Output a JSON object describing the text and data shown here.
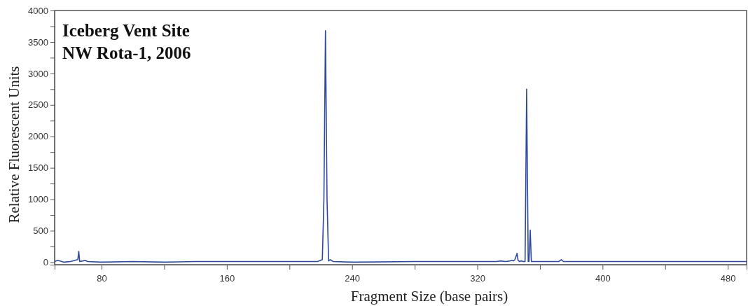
{
  "chart_data": {
    "type": "line",
    "title": "Iceberg Vent Site",
    "subtitle": "NW Rota-1, 2006",
    "xlabel": "Fragment Size (base pairs)",
    "ylabel": "Relative Fluorescent Units",
    "xlim": [
      50,
      492
    ],
    "xticks": [
      80,
      {
        "value": 120,
        "label": null
      },
      160,
      {
        "value": 200,
        "label": null
      },
      240,
      {
        "value": 280,
        "label": null
      },
      320,
      {
        "value": 360,
        "label": null
      },
      400,
      {
        "value": 440,
        "label": null
      },
      480
    ],
    "ylim": [
      -40,
      4000
    ],
    "yticks": [
      0,
      {
        "value": 250,
        "label": null
      },
      500,
      {
        "value": 750,
        "label": null
      },
      1000,
      {
        "value": 1250,
        "label": null
      },
      1500,
      {
        "value": 1750,
        "label": null
      },
      2000,
      {
        "value": 2250,
        "label": null
      },
      2500,
      {
        "value": 2750,
        "label": null
      },
      3000,
      {
        "value": 3250,
        "label": null
      },
      3500,
      {
        "value": 3750,
        "label": null
      },
      4000
    ],
    "grid": false,
    "marker": "none",
    "line_style": "solid",
    "series": [
      {
        "color": "#2e4a9a",
        "x": [
          50,
          52,
          56,
          60,
          64.8,
          65.4,
          66,
          68,
          69.5,
          71,
          80,
          100,
          120,
          140,
          160,
          180,
          200,
          218,
          221,
          222,
          223,
          224,
          225,
          226,
          228,
          240,
          280,
          300,
          320,
          332,
          335,
          338,
          341,
          342,
          343,
          344,
          345.4,
          346,
          347,
          348,
          349.5,
          350.5,
          351.5,
          352.5,
          353,
          353.8,
          354.5,
          360,
          372,
          373.7,
          375,
          400,
          440,
          480,
          492
        ],
        "values": [
          10,
          30,
          0,
          10,
          40,
          170,
          10,
          20,
          30,
          10,
          0,
          10,
          0,
          10,
          10,
          10,
          10,
          10,
          40,
          1000,
          3680,
          1000,
          20,
          40,
          10,
          0,
          10,
          10,
          10,
          10,
          20,
          10,
          20,
          30,
          20,
          40,
          140,
          30,
          10,
          20,
          10,
          10,
          2750,
          10,
          10,
          510,
          10,
          10,
          10,
          40,
          10,
          10,
          10,
          10,
          10
        ]
      }
    ]
  }
}
